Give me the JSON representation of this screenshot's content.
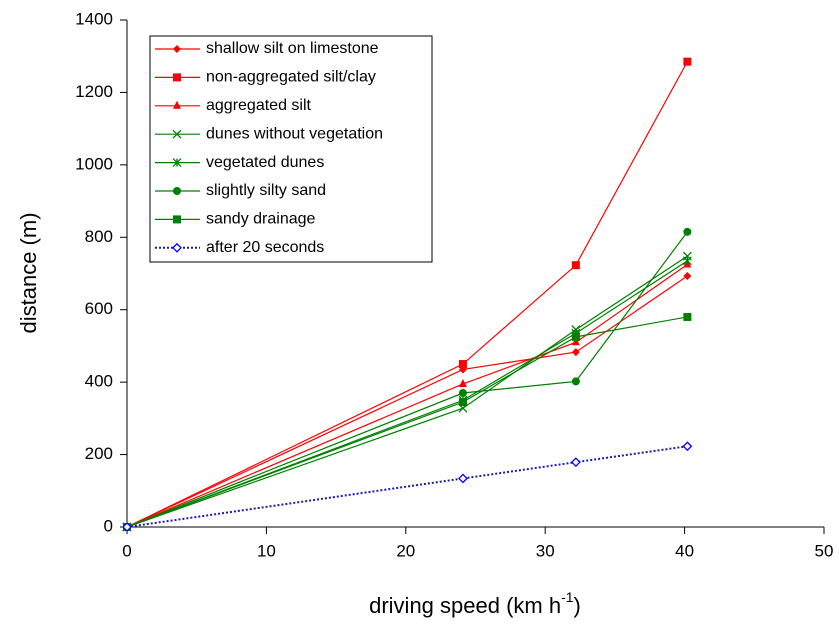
{
  "chart_data": {
    "type": "line",
    "xlabel": [
      "driving speed (km h",
      "-1",
      ")"
    ],
    "ylabel": "distance (m)",
    "x": [
      0,
      24.1,
      32.2,
      40.2
    ],
    "xlim": [
      0,
      50
    ],
    "xticks": [
      0,
      10,
      20,
      30,
      40,
      50
    ],
    "ylim": [
      0,
      1400
    ],
    "yticks": [
      0,
      200,
      400,
      600,
      800,
      1000,
      1200,
      1400
    ],
    "legend": "top-left",
    "series": [
      {
        "name": "shallow silt on limestone",
        "color": "#ff0000",
        "marker": "diamond",
        "values": [
          0,
          435,
          483,
          693
        ]
      },
      {
        "name": "non-aggregated silt/clay",
        "color": "#ff0000",
        "marker": "square",
        "values": [
          0,
          450,
          723,
          1285
        ]
      },
      {
        "name": "aggregated silt",
        "color": "#ff0000",
        "marker": "triangle",
        "values": [
          0,
          395,
          510,
          725
        ]
      },
      {
        "name": "dunes without vegetation",
        "color": "#008000",
        "marker": "x",
        "values": [
          0,
          328,
          545,
          748
        ]
      },
      {
        "name": "vegetated dunes",
        "color": "#008000",
        "marker": "asterisk",
        "values": [
          0,
          350,
          535,
          735
        ]
      },
      {
        "name": "slightly silty sand",
        "color": "#008000",
        "marker": "circle",
        "values": [
          0,
          370,
          402,
          815
        ]
      },
      {
        "name": "sandy drainage",
        "color": "#008000",
        "marker": "square",
        "values": [
          0,
          345,
          525,
          580
        ]
      },
      {
        "name": "after 20 seconds",
        "color": "#1a1ab0",
        "marker": "open-diamond",
        "linestyle": "dotted",
        "values": [
          0,
          134,
          179,
          223
        ]
      }
    ]
  }
}
